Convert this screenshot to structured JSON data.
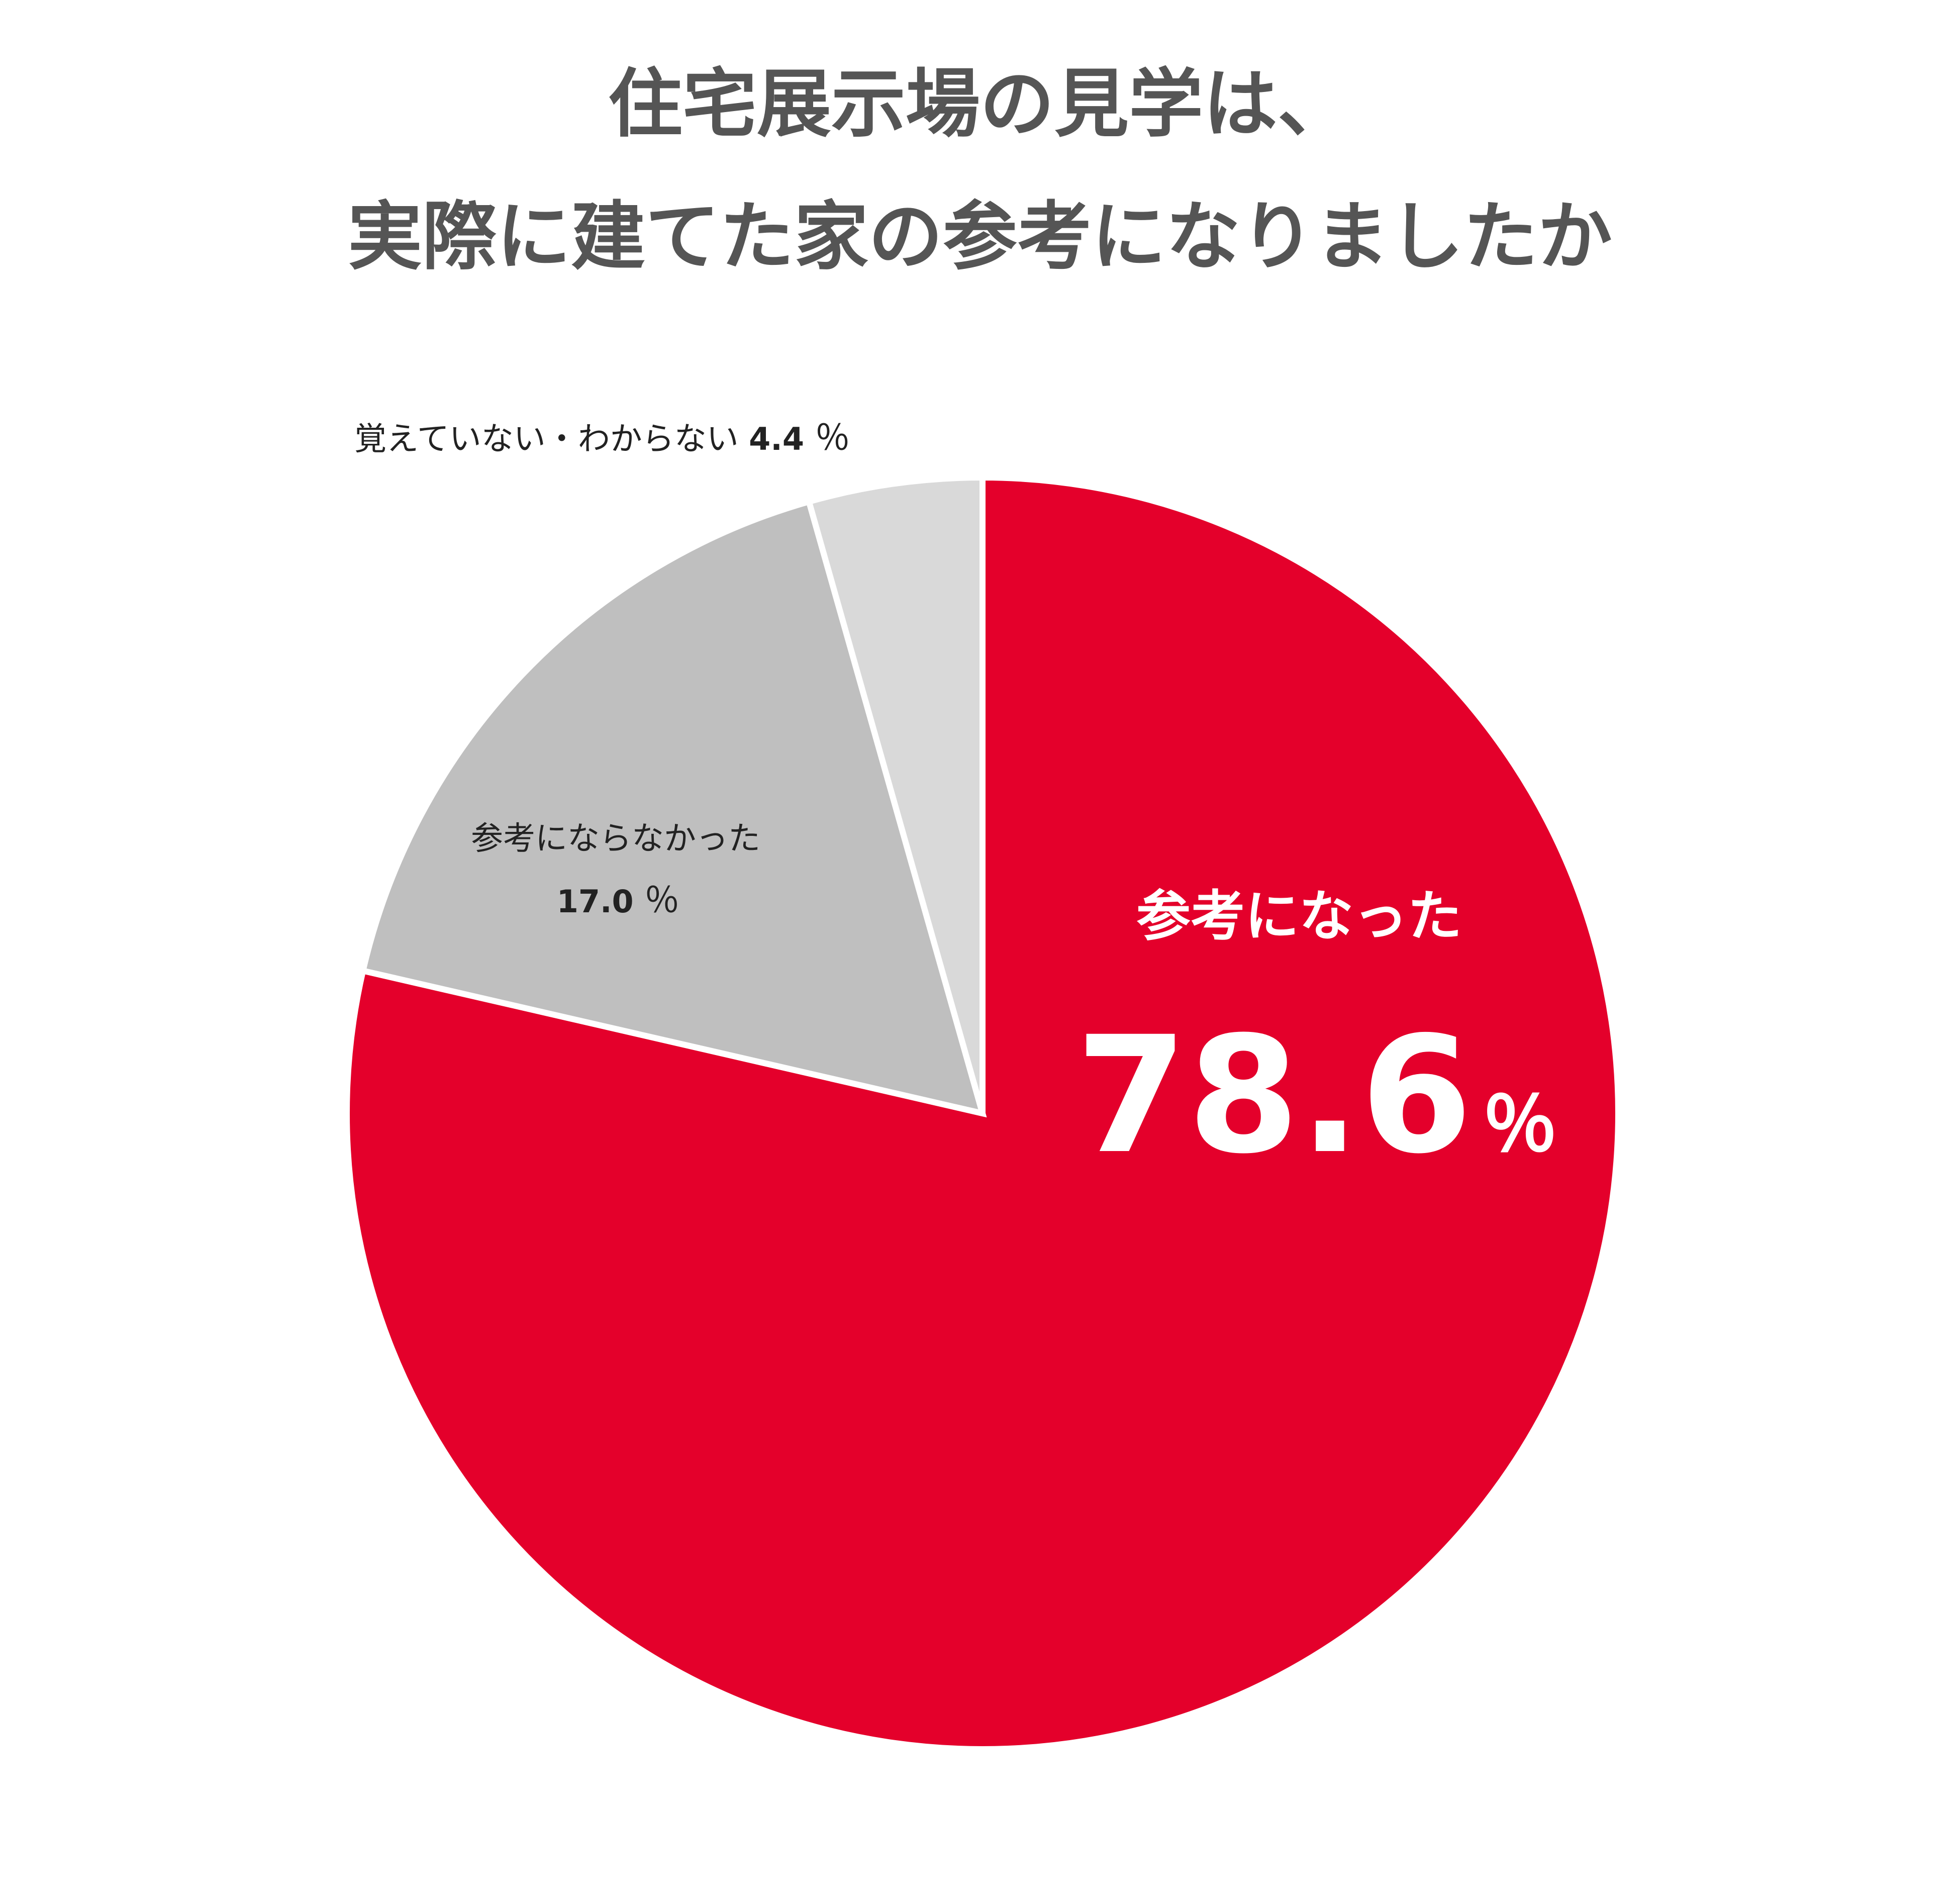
{
  "chart_data": {
    "type": "pie",
    "title_lines": [
      "住宅展示場の見学は、",
      "実際に建てた家の参考になりましたか"
    ],
    "unit": "％",
    "start": "12 o'clock",
    "direction": "clockwise",
    "slices": [
      {
        "label": "参考になった",
        "value": 78.6,
        "value_text": "78.6",
        "color": "#E4002B",
        "label_color": "#FFFFFF"
      },
      {
        "label": "参考にならなかった",
        "value": 17.0,
        "value_text": "17.0",
        "color": "#BFBFBF",
        "label_color": "#222222"
      },
      {
        "label": "覚えていない・わからない",
        "value": 4.4,
        "value_text": "4.4",
        "color": "#D9D9D9",
        "label_color": "#222222"
      }
    ]
  }
}
